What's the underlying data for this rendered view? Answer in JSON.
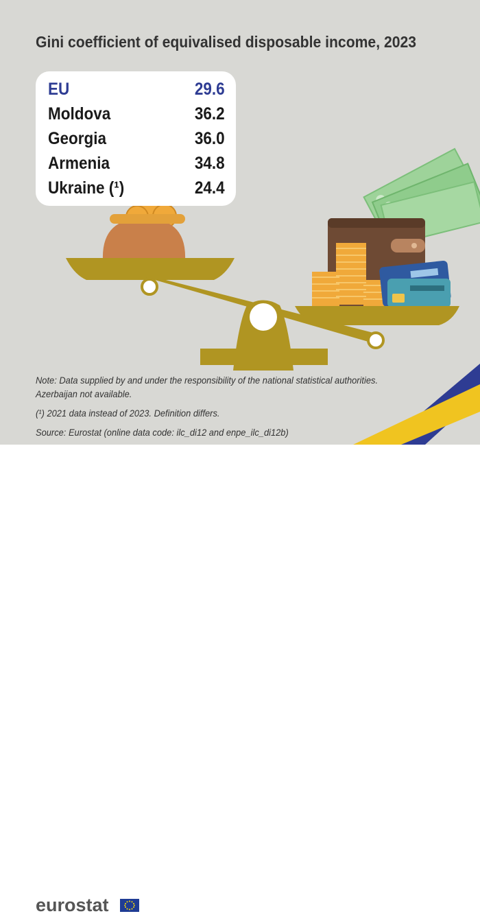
{
  "title": "Gini coefficient of equivalised disposable income, 2023",
  "chart_data": {
    "type": "table",
    "title": "Gini coefficient of equivalised disposable income, 2023",
    "rows": [
      {
        "label": "EU",
        "value": "29.6",
        "highlight": true
      },
      {
        "label": "Moldova",
        "value": "36.2"
      },
      {
        "label": "Georgia",
        "value": "36.0"
      },
      {
        "label": "Armenia",
        "value": "34.8"
      },
      {
        "label": "Ukraine (¹)",
        "value": "24.4"
      }
    ]
  },
  "notes": {
    "line1": "Note: Data supplied by and under the responsibility of the national statistical authorities.",
    "line2": "Azerbaijan not available.",
    "footnote": "(¹) 2021 data instead of 2023. Definition differs.",
    "source": "Source: Eurostat (online data code: ilc_di12 and enpe_ilc_di12b)"
  },
  "branding": {
    "logo": "eurostat"
  },
  "colors": {
    "background": "#d8d8d4",
    "eu_highlight": "#2e3c93",
    "scale_gold": "#b09522",
    "flag_blue": "#1f3c94",
    "flag_star": "#ffdd00"
  }
}
